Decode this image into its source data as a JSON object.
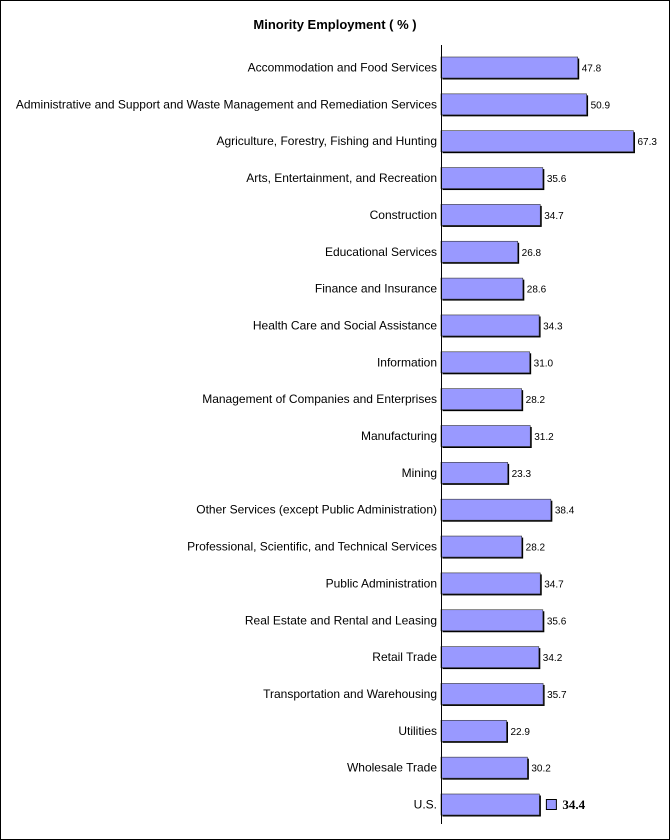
{
  "chart_data": {
    "type": "bar",
    "orientation": "horizontal",
    "title": "Minority Employment ( % )",
    "xlabel": "",
    "ylabel": "",
    "grid": false,
    "bar_color": "#9999ff",
    "categories": [
      "Accommodation and Food Services",
      "Administrative and Support and Waste Management and Remediation Services",
      "Agriculture, Forestry, Fishing and Hunting",
      "Arts, Entertainment, and Recreation",
      "Construction",
      "Educational Services",
      "Finance and Insurance",
      "Health Care and Social Assistance",
      "Information",
      "Management of Companies and Enterprises",
      "Manufacturing",
      "Mining",
      "Other Services (except Public Administration)",
      "Professional, Scientific, and Technical Services",
      "Public Administration",
      "Real Estate and Rental and Leasing",
      "Retail Trade",
      "Transportation and Warehousing",
      "Utilities",
      "Wholesale Trade",
      "U.S."
    ],
    "values": [
      47.8,
      50.9,
      67.3,
      35.6,
      34.7,
      26.8,
      28.6,
      34.3,
      31.0,
      28.2,
      31.2,
      23.3,
      38.4,
      28.2,
      34.7,
      35.6,
      34.2,
      35.7,
      22.9,
      30.2,
      34.4
    ],
    "value_labels": [
      "47.8",
      "50.9",
      "67.3",
      "35.6",
      "34.7",
      "26.8",
      "28.6",
      "34.3",
      "31.0",
      "28.2",
      "31.2",
      "23.3",
      "38.4",
      "28.2",
      "34.7",
      "35.6",
      "34.2",
      "35.7",
      "22.9",
      "30.2",
      "34.4"
    ],
    "highlight": "U.S."
  }
}
